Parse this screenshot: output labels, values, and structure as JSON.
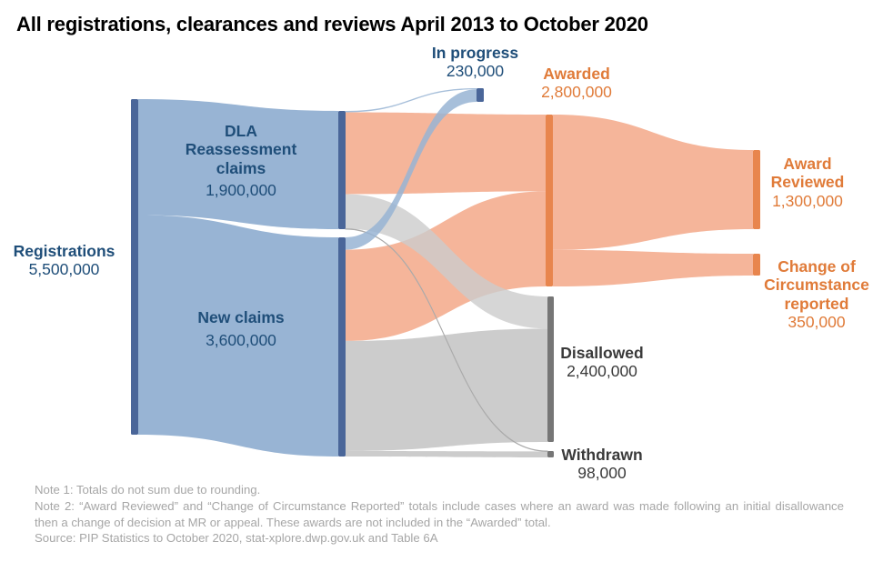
{
  "title": "All registrations, clearances and reviews April 2013 to October 2020",
  "colors": {
    "blue_node": "#4a6699",
    "blue_flow": "#98b4d4",
    "blue_label": "#1f4e79",
    "orange_node": "#e8854d",
    "orange_flow": "#f5b59a",
    "orange_label": "#e07b39",
    "grey_node": "#767676",
    "grey_flow": "#cccccc",
    "dark_label": "#3a3a3a"
  },
  "nodes": {
    "registrations": {
      "name": "Registrations",
      "value": "5,500,000"
    },
    "dla": {
      "name_line1": "DLA",
      "name_line2": "Reassessment",
      "name_line3": "claims",
      "value": "1,900,000"
    },
    "new_claims": {
      "name": "New claims",
      "value": "3,600,000"
    },
    "in_progress": {
      "name": "In progress",
      "value": "230,000"
    },
    "awarded": {
      "name": "Awarded",
      "value": "2,800,000"
    },
    "disallowed": {
      "name": "Disallowed",
      "value": "2,400,000"
    },
    "withdrawn": {
      "name": "Withdrawn",
      "value": "98,000"
    },
    "award_reviewed": {
      "name_line1": "Award",
      "name_line2": "Reviewed",
      "value": "1,300,000"
    },
    "change_of_circumstance": {
      "name_line1": "Change of",
      "name_line2": "Circumstance",
      "name_line3": "reported",
      "value": "350,000"
    }
  },
  "chart_data": {
    "type": "sankey",
    "title": "All registrations, clearances and reviews April 2013 to October 2020",
    "nodes": [
      {
        "id": "registrations",
        "label": "Registrations",
        "value": 5500000
      },
      {
        "id": "dla",
        "label": "DLA Reassessment claims",
        "value": 1900000
      },
      {
        "id": "new_claims",
        "label": "New claims",
        "value": 3600000
      },
      {
        "id": "in_progress",
        "label": "In progress",
        "value": 230000
      },
      {
        "id": "awarded",
        "label": "Awarded",
        "value": 2800000
      },
      {
        "id": "disallowed",
        "label": "Disallowed",
        "value": 2400000
      },
      {
        "id": "withdrawn",
        "label": "Withdrawn",
        "value": 98000
      },
      {
        "id": "award_reviewed",
        "label": "Award Reviewed",
        "value": 1300000
      },
      {
        "id": "change_of_circumstance",
        "label": "Change of Circumstance reported",
        "value": 350000
      }
    ],
    "links": [
      {
        "source": "registrations",
        "target": "dla",
        "value": 1900000,
        "color": "blue"
      },
      {
        "source": "registrations",
        "target": "new_claims",
        "value": 3600000,
        "color": "blue"
      },
      {
        "source": "dla",
        "target": "in_progress",
        "value": 20000,
        "color": "blue"
      },
      {
        "source": "dla",
        "target": "awarded",
        "value": 1250000,
        "color": "orange"
      },
      {
        "source": "dla",
        "target": "disallowed",
        "value": 530000,
        "color": "grey"
      },
      {
        "source": "dla",
        "target": "withdrawn",
        "value": 5000,
        "color": "grey"
      },
      {
        "source": "new_claims",
        "target": "in_progress",
        "value": 210000,
        "color": "blue"
      },
      {
        "source": "new_claims",
        "target": "awarded",
        "value": 1550000,
        "color": "orange"
      },
      {
        "source": "new_claims",
        "target": "disallowed",
        "value": 1870000,
        "color": "grey"
      },
      {
        "source": "new_claims",
        "target": "withdrawn",
        "value": 93000,
        "color": "grey"
      },
      {
        "source": "awarded",
        "target": "award_reviewed",
        "value": 1300000,
        "color": "orange"
      },
      {
        "source": "awarded",
        "target": "change_of_circumstance",
        "value": 350000,
        "color": "orange"
      }
    ]
  },
  "notes": [
    "Note 1: Totals  do not sum  due to rounding.",
    "Note 2: “Award Reviewed” and “Change of Circumstance Reported” totals include cases where an award was made following an initial disallowance then a change of decision at MR or appeal. These awards are not included in the “Awarded” total.",
    "Source: PIP Statistics to October 2020, stat-xplore.dwp.gov.uk  and Table 6A"
  ]
}
